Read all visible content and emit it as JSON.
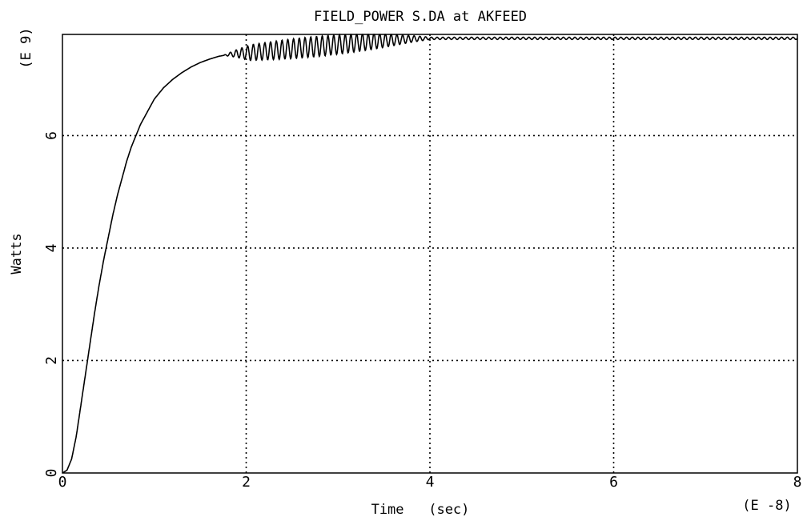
{
  "chart_data": {
    "type": "line",
    "title": "FIELD_POWER S.DA at AKFEED",
    "xlabel": "Time   (sec)",
    "ylabel": "Watts",
    "x_scale_label": "(E -8)",
    "y_scale_label": "(E 9)",
    "xlim": [
      0,
      8
    ],
    "ylim": [
      0,
      7.8
    ],
    "x_ticks": [
      "0",
      "2",
      "4",
      "6",
      "8"
    ],
    "y_ticks": [
      "0",
      "2",
      "4",
      "6"
    ],
    "x_tick_values": [
      0,
      2,
      4,
      6,
      8
    ],
    "y_tick_values": [
      0,
      2,
      4,
      6
    ],
    "grid": true,
    "series": [
      {
        "x": [
          0,
          0.05,
          0.1,
          0.15,
          0.2,
          0.25,
          0.3,
          0.35,
          0.4,
          0.45,
          0.5,
          0.55,
          0.6,
          0.65,
          0.7,
          0.75,
          0.8,
          0.85,
          0.9,
          1.0,
          1.1,
          1.2,
          1.3,
          1.4,
          1.5,
          1.6,
          1.7,
          1.8,
          1.9,
          2.0,
          2.2,
          2.4,
          2.6,
          2.8,
          3.0,
          3.2,
          3.4,
          3.6,
          3.8,
          4.0,
          4.5,
          5.0,
          5.5,
          6.0,
          6.5,
          7.0,
          7.5,
          8.0
        ],
        "values": [
          0,
          0.05,
          0.25,
          0.65,
          1.2,
          1.75,
          2.3,
          2.85,
          3.35,
          3.8,
          4.2,
          4.6,
          4.95,
          5.25,
          5.55,
          5.8,
          6.0,
          6.2,
          6.35,
          6.65,
          6.85,
          7.0,
          7.12,
          7.22,
          7.3,
          7.36,
          7.41,
          7.44,
          7.46,
          7.47,
          7.5,
          7.53,
          7.56,
          7.59,
          7.62,
          7.65,
          7.68,
          7.7,
          7.72,
          7.73,
          7.73,
          7.73,
          7.73,
          7.73,
          7.73,
          7.73,
          7.73,
          7.73
        ]
      }
    ]
  }
}
